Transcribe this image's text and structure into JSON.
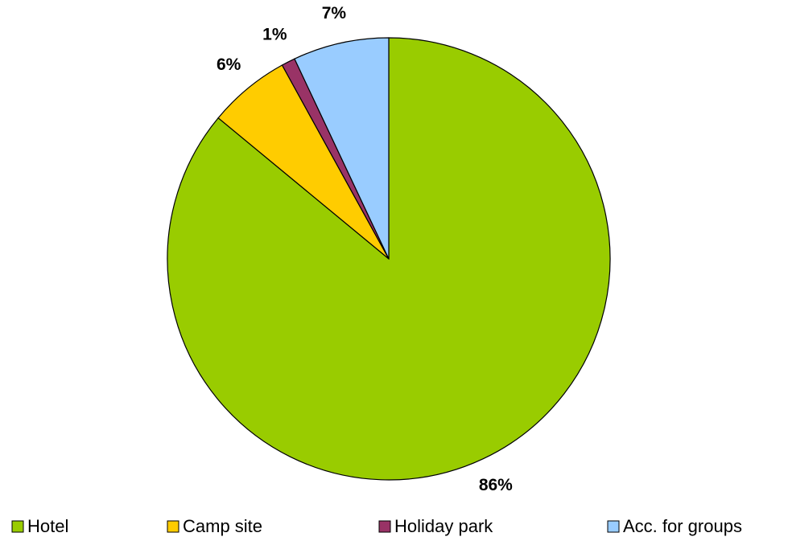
{
  "chart_data": {
    "type": "pie",
    "categories": [
      "Hotel",
      "Camp site",
      "Holiday park",
      "Acc. for groups"
    ],
    "values": [
      86,
      6,
      1,
      7
    ],
    "value_labels": [
      "86%",
      "6%",
      "1%",
      "7%"
    ],
    "colors": [
      "#99cc00",
      "#ffcc00",
      "#993366",
      "#99ccff"
    ],
    "legend": "bottom"
  }
}
